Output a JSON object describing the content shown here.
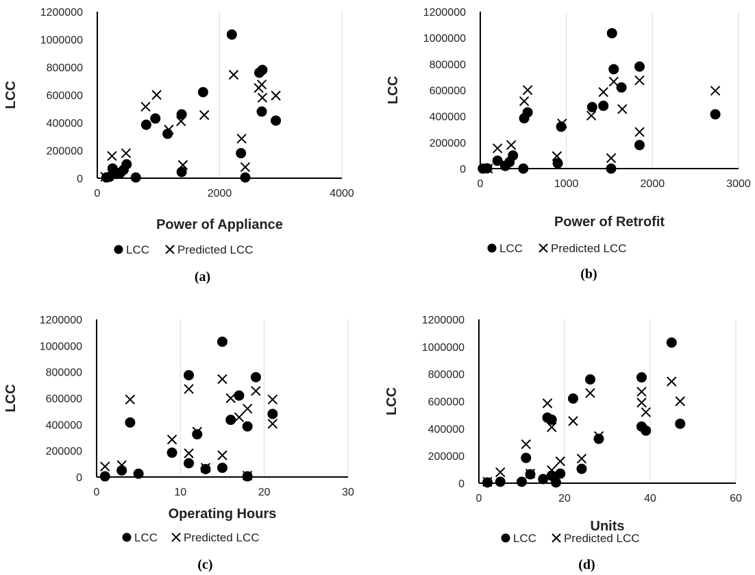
{
  "chart_data": [
    {
      "type": "scatter",
      "caption": "(a)",
      "xlabel": "Power of Appliance",
      "ylabel": "LCC",
      "xlim": [
        0,
        4000
      ],
      "ylim": [
        0,
        1200000
      ],
      "xticks": [
        "0",
        "2000",
        "4000"
      ],
      "yticks": [
        "0",
        "200000",
        "400000",
        "600000",
        "800000",
        "1000000",
        "1200000"
      ],
      "grid": "vertical",
      "legend": "bottom",
      "series": [
        {
          "name": "LCC",
          "marker": "circle",
          "points": [
            [
              150,
              5000
            ],
            [
              200,
              10000
            ],
            [
              250,
              70000
            ],
            [
              320,
              30000
            ],
            [
              380,
              40000
            ],
            [
              430,
              60000
            ],
            [
              480,
              100000
            ],
            [
              630,
              5000
            ],
            [
              800,
              385000
            ],
            [
              950,
              430000
            ],
            [
              1150,
              320000
            ],
            [
              1380,
              460000
            ],
            [
              1380,
              45000
            ],
            [
              1730,
              620000
            ],
            [
              2200,
              1035000
            ],
            [
              2350,
              180000
            ],
            [
              2420,
              5000
            ],
            [
              2650,
              760000
            ],
            [
              2700,
              780000
            ],
            [
              2690,
              480000
            ],
            [
              2920,
              415000
            ]
          ]
        },
        {
          "name": "Predicted LCC",
          "marker": "x",
          "points": [
            [
              130,
              10000
            ],
            [
              240,
              160000
            ],
            [
              340,
              50000
            ],
            [
              470,
              180000
            ],
            [
              790,
              515000
            ],
            [
              970,
              600000
            ],
            [
              1170,
              350000
            ],
            [
              1370,
              410000
            ],
            [
              1400,
              95000
            ],
            [
              1750,
              455000
            ],
            [
              2230,
              745000
            ],
            [
              2360,
              285000
            ],
            [
              2420,
              80000
            ],
            [
              2640,
              650000
            ],
            [
              2690,
              675000
            ],
            [
              2700,
              580000
            ],
            [
              2920,
              595000
            ]
          ]
        }
      ]
    },
    {
      "type": "scatter",
      "caption": "(b)",
      "xlabel": "Power of Retrofit",
      "ylabel": "LCC",
      "xlim": [
        0,
        3000
      ],
      "ylim": [
        0,
        1200000
      ],
      "xticks": [
        "0",
        "1000",
        "2000",
        "3000"
      ],
      "yticks": [
        "0",
        "200000",
        "400000",
        "600000",
        "800000",
        "1000000",
        "1200000"
      ],
      "grid": "vertical",
      "legend": "bottom",
      "series": [
        {
          "name": "LCC",
          "marker": "circle",
          "points": [
            [
              30,
              0
            ],
            [
              80,
              2000
            ],
            [
              200,
              60000
            ],
            [
              290,
              20000
            ],
            [
              340,
              50000
            ],
            [
              380,
              100000
            ],
            [
              500,
              0
            ],
            [
              510,
              385000
            ],
            [
              550,
              430000
            ],
            [
              900,
              40000
            ],
            [
              940,
              320000
            ],
            [
              1300,
              470000
            ],
            [
              1430,
              480000
            ],
            [
              1530,
              1035000
            ],
            [
              1520,
              0
            ],
            [
              1550,
              760000
            ],
            [
              1640,
              620000
            ],
            [
              1850,
              780000
            ],
            [
              1850,
              180000
            ],
            [
              2730,
              415000
            ]
          ]
        },
        {
          "name": "Predicted LCC",
          "marker": "x",
          "points": [
            [
              90,
              0
            ],
            [
              200,
              155000
            ],
            [
              300,
              30000
            ],
            [
              360,
              180000
            ],
            [
              510,
              515000
            ],
            [
              550,
              600000
            ],
            [
              890,
              95000
            ],
            [
              950,
              345000
            ],
            [
              1290,
              405000
            ],
            [
              1430,
              585000
            ],
            [
              1520,
              80000
            ],
            [
              1550,
              665000
            ],
            [
              1650,
              455000
            ],
            [
              1850,
              675000
            ],
            [
              1850,
              280000
            ],
            [
              2730,
              595000
            ]
          ]
        }
      ]
    },
    {
      "type": "scatter",
      "caption": "(c)",
      "xlabel": "Operating Hours",
      "ylabel": "LCC",
      "xlim": [
        0,
        30
      ],
      "ylim": [
        0,
        1200000
      ],
      "xticks": [
        "0",
        "10",
        "20",
        "30"
      ],
      "yticks": [
        "0",
        "200000",
        "400000",
        "600000",
        "800000",
        "1000000",
        "1200000"
      ],
      "grid": "vertical",
      "legend": "bottom",
      "series": [
        {
          "name": "LCC",
          "marker": "circle",
          "points": [
            [
              1,
              5000
            ],
            [
              3,
              50000
            ],
            [
              4,
              415000
            ],
            [
              5,
              25000
            ],
            [
              9,
              185000
            ],
            [
              11,
              105000
            ],
            [
              11,
              775000
            ],
            [
              12,
              325000
            ],
            [
              13,
              60000
            ],
            [
              15,
              1030000
            ],
            [
              15,
              70000
            ],
            [
              16,
              435000
            ],
            [
              17,
              620000
            ],
            [
              18,
              385000
            ],
            [
              18,
              5000
            ],
            [
              19,
              760000
            ],
            [
              21,
              480000
            ]
          ]
        },
        {
          "name": "Predicted LCC",
          "marker": "x",
          "points": [
            [
              1,
              80000
            ],
            [
              3,
              90000
            ],
            [
              4,
              590000
            ],
            [
              9,
              285000
            ],
            [
              11,
              180000
            ],
            [
              11,
              670000
            ],
            [
              12,
              345000
            ],
            [
              13,
              70000
            ],
            [
              15,
              745000
            ],
            [
              15,
              165000
            ],
            [
              16,
              600000
            ],
            [
              17,
              455000
            ],
            [
              18,
              520000
            ],
            [
              18,
              10000
            ],
            [
              19,
              655000
            ],
            [
              21,
              590000
            ],
            [
              21,
              405000
            ]
          ]
        }
      ]
    },
    {
      "type": "scatter",
      "caption": "(d)",
      "xlabel": "Units",
      "ylabel": "LCC",
      "xlim": [
        0,
        60
      ],
      "ylim": [
        0,
        1200000
      ],
      "xticks": [
        "0",
        "20",
        "40",
        "60"
      ],
      "yticks": [
        "0",
        "200000",
        "400000",
        "600000",
        "800000",
        "1000000",
        "1200000"
      ],
      "grid": "vertical",
      "legend": "bottom",
      "series": [
        {
          "name": "LCC",
          "marker": "circle",
          "points": [
            [
              2,
              5000
            ],
            [
              5,
              10000
            ],
            [
              10,
              10000
            ],
            [
              11,
              185000
            ],
            [
              12,
              65000
            ],
            [
              15,
              30000
            ],
            [
              16,
              480000
            ],
            [
              17,
              465000
            ],
            [
              17,
              55000
            ],
            [
              18,
              5000
            ],
            [
              19,
              70000
            ],
            [
              22,
              620000
            ],
            [
              24,
              105000
            ],
            [
              26,
              760000
            ],
            [
              28,
              325000
            ],
            [
              38,
              775000
            ],
            [
              38,
              415000
            ],
            [
              39,
              385000
            ],
            [
              45,
              1030000
            ],
            [
              47,
              435000
            ]
          ]
        },
        {
          "name": "Predicted LCC",
          "marker": "x",
          "points": [
            [
              2,
              10000
            ],
            [
              5,
              80000
            ],
            [
              11,
              285000
            ],
            [
              12,
              70000
            ],
            [
              16,
              585000
            ],
            [
              17,
              410000
            ],
            [
              17,
              95000
            ],
            [
              19,
              160000
            ],
            [
              22,
              455000
            ],
            [
              24,
              180000
            ],
            [
              26,
              660000
            ],
            [
              28,
              345000
            ],
            [
              38,
              670000
            ],
            [
              38,
              590000
            ],
            [
              39,
              520000
            ],
            [
              45,
              745000
            ],
            [
              47,
              600000
            ]
          ]
        }
      ]
    }
  ]
}
